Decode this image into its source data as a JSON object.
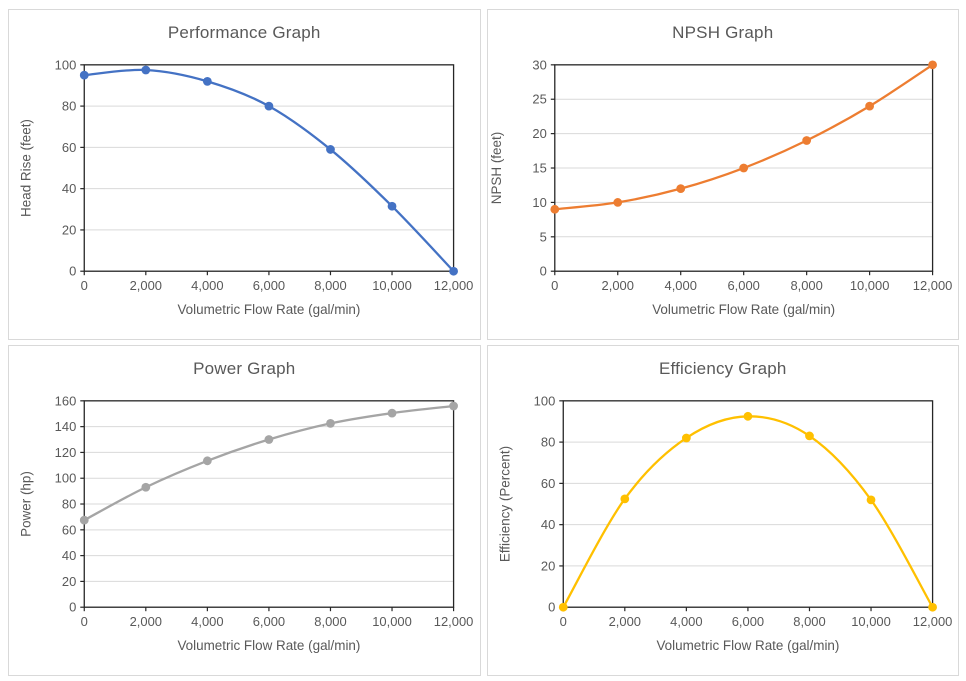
{
  "theme": {
    "background": "#ffffff",
    "panel_border": "#d9d9d9",
    "plot_border": "#262626",
    "gridline": "#d9d9d9",
    "text_color": "#595959",
    "title_color": "#595959"
  },
  "chart_data": [
    {
      "id": "performance",
      "type": "line",
      "title": "Performance Graph",
      "xlabel": "Volumetric Flow Rate (gal/min)",
      "ylabel": "Head Rise (feet)",
      "x": [
        0,
        2000,
        4000,
        6000,
        8000,
        10000,
        12000
      ],
      "x_tick_labels": [
        "0",
        "2,000",
        "4,000",
        "6,000",
        "8,000",
        "10,000",
        "12,000"
      ],
      "values": [
        95,
        97.5,
        92,
        80,
        59,
        31.5,
        0
      ],
      "ylim": [
        0,
        100
      ],
      "ytick_step": 20,
      "color": "#4472C4",
      "smooth": true,
      "markers": true,
      "grid": "horizontal",
      "legend": "none"
    },
    {
      "id": "npsh",
      "type": "line",
      "title": "NPSH Graph",
      "xlabel": "Volumetric Flow Rate (gal/min)",
      "ylabel": "NPSH (feet)",
      "x": [
        0,
        2000,
        4000,
        6000,
        8000,
        10000,
        12000
      ],
      "x_tick_labels": [
        "0",
        "2,000",
        "4,000",
        "6,000",
        "8,000",
        "10,000",
        "12,000"
      ],
      "values": [
        9,
        10,
        12,
        15,
        19,
        24,
        30
      ],
      "ylim": [
        0,
        30
      ],
      "ytick_step": 5,
      "color": "#ED7D31",
      "smooth": true,
      "markers": true,
      "grid": "horizontal",
      "legend": "none"
    },
    {
      "id": "power",
      "type": "line",
      "title": "Power Graph",
      "xlabel": "Volumetric Flow Rate (gal/min)",
      "ylabel": "Power (hp)",
      "x": [
        0,
        2000,
        4000,
        6000,
        8000,
        10000,
        12000
      ],
      "x_tick_labels": [
        "0",
        "2,000",
        "4,000",
        "6,000",
        "8,000",
        "10,000",
        "12,000"
      ],
      "values": [
        67.5,
        93,
        113.5,
        130,
        142.5,
        150.5,
        156
      ],
      "ylim": [
        0,
        160
      ],
      "ytick_step": 20,
      "color": "#A5A5A5",
      "smooth": true,
      "markers": true,
      "grid": "horizontal",
      "legend": "none"
    },
    {
      "id": "efficiency",
      "type": "line",
      "title": "Efficiency Graph",
      "xlabel": "Volumetric Flow Rate (gal/min)",
      "ylabel": "Efficiency (Percent)",
      "x": [
        0,
        2000,
        4000,
        6000,
        8000,
        10000,
        12000
      ],
      "x_tick_labels": [
        "0",
        "2,000",
        "4,000",
        "6,000",
        "8,000",
        "10,000",
        "12,000"
      ],
      "values": [
        0,
        52.5,
        82,
        92.5,
        83,
        52,
        0
      ],
      "ylim": [
        0,
        100
      ],
      "ytick_step": 20,
      "color": "#FFC000",
      "smooth": true,
      "markers": true,
      "grid": "horizontal",
      "legend": "none"
    }
  ]
}
